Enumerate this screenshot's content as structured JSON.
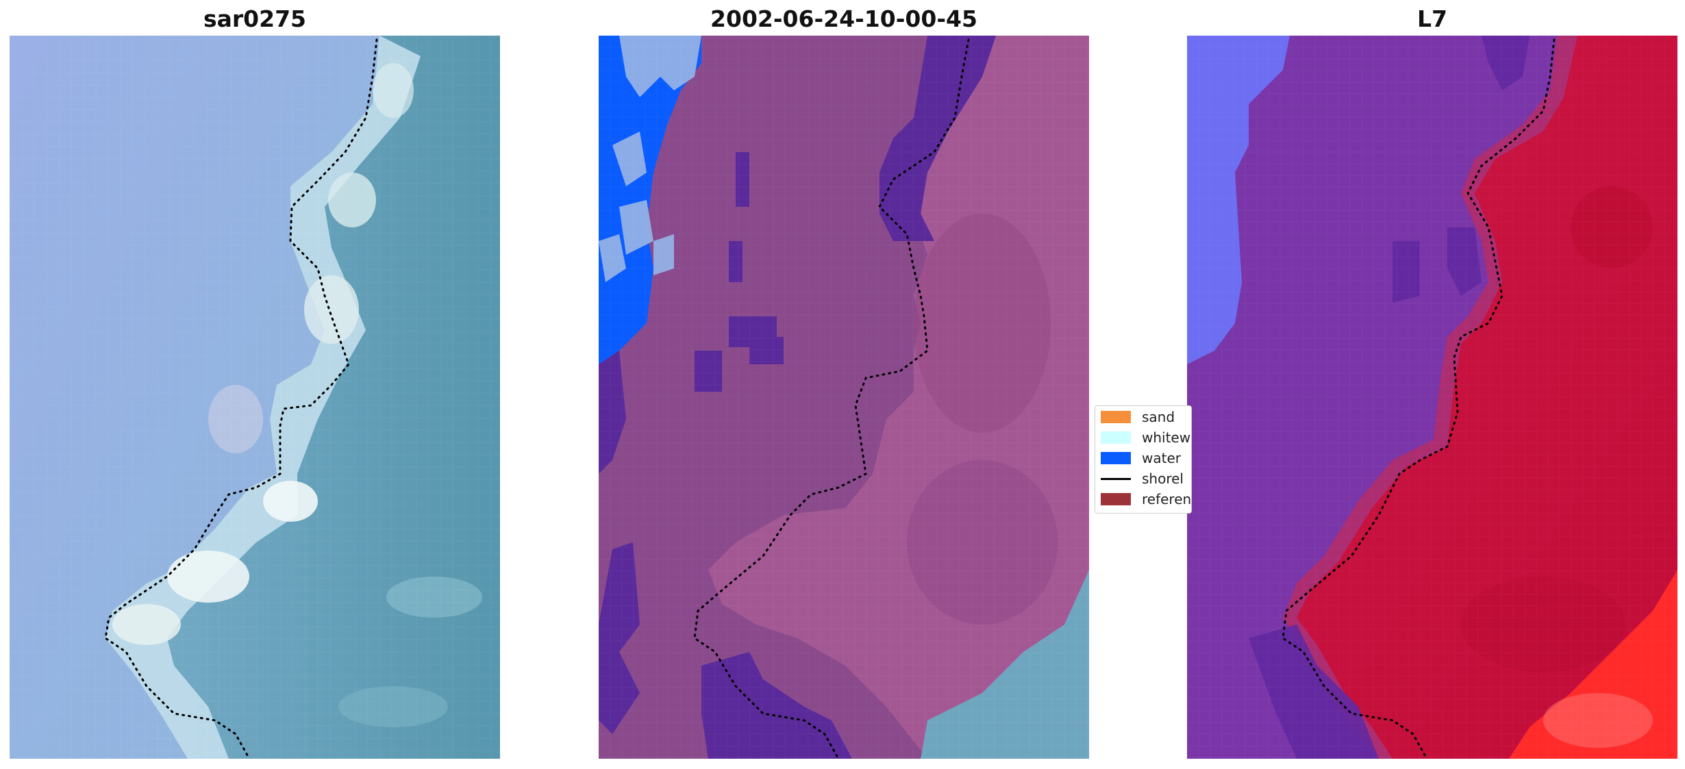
{
  "panels": [
    {
      "title": "sar0275"
    },
    {
      "title": "2002-06-24-10-00-45"
    },
    {
      "title": "L7"
    }
  ],
  "legend": {
    "items": [
      {
        "label": "sand",
        "kind": "patch",
        "color": "#f58f3a"
      },
      {
        "label": "whitew",
        "kind": "patch",
        "color": "#ccffff"
      },
      {
        "label": "water",
        "kind": "patch",
        "color": "#0a5cff"
      },
      {
        "label": "shorel",
        "kind": "line",
        "color": "#000000"
      },
      {
        "label": "referen",
        "kind": "patch",
        "color": "#9c3338"
      }
    ]
  },
  "colors": {
    "rgb_land": "#97aee0",
    "rgb_sea": "#5e9bb8",
    "rgb_whitewater": "#e2f2f2",
    "class_background": "#8c4a8c",
    "class_water_dark": "#5a2a9a",
    "class_water": "#0a5cff",
    "class_sea_mauve": "#8a4a84",
    "l7_land": "#7b38a8",
    "l7_sea": "#c8103a",
    "l7_water": "#6e6ef0",
    "shoreline": "#000000"
  }
}
